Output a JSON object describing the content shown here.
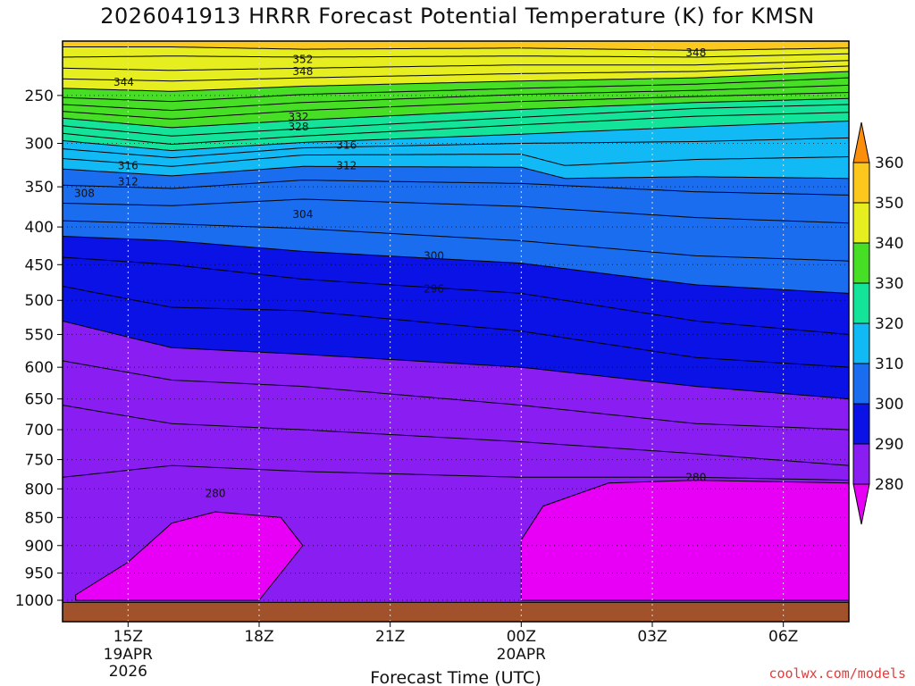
{
  "title": "2026041913 HRRR Forecast Potential Temperature (K) for KMSN",
  "credit": "coolwx.com/models",
  "chart_data": {
    "type": "heatmap",
    "title": "2026041913 HRRR Forecast Potential Temperature (K) for KMSN",
    "xlabel": "Forecast Time (UTC)",
    "ylabel": "",
    "x_range": [
      13.5,
      31.5
    ],
    "y_range": [
      200,
      1040
    ],
    "y_ticks": [
      250,
      300,
      350,
      400,
      450,
      500,
      550,
      600,
      650,
      700,
      750,
      800,
      850,
      900,
      950,
      1000
    ],
    "x_ticks": [
      {
        "x": 15,
        "label": "15Z",
        "sub": [
          "19APR",
          "2026"
        ]
      },
      {
        "x": 18,
        "label": "18Z",
        "sub": []
      },
      {
        "x": 21,
        "label": "21Z",
        "sub": []
      },
      {
        "x": 24,
        "label": "00Z",
        "sub": [
          "20APR"
        ]
      },
      {
        "x": 27,
        "label": "03Z",
        "sub": []
      },
      {
        "x": 30,
        "label": "06Z",
        "sub": []
      }
    ],
    "colorbar": {
      "ticks": [
        280,
        290,
        300,
        310,
        320,
        330,
        340,
        350,
        360
      ],
      "colors": [
        "#e700f5",
        "#8a1ef2",
        "#0a12e6",
        "#1b6df0",
        "#11baf5",
        "#14e39a",
        "#47de26",
        "#e6ee1f",
        "#fcc81e",
        "#fb8f0b"
      ]
    },
    "ground_color": "#a2522a",
    "contour_labels": [
      {
        "value": "348",
        "x": 28.0,
        "p": 210
      },
      {
        "value": "352",
        "x": 19.0,
        "p": 216
      },
      {
        "value": "348",
        "x": 19.0,
        "p": 227
      },
      {
        "value": "344",
        "x": 14.9,
        "p": 237
      },
      {
        "value": "332",
        "x": 18.9,
        "p": 272
      },
      {
        "value": "328",
        "x": 18.9,
        "p": 282
      },
      {
        "value": "316",
        "x": 15.0,
        "p": 325
      },
      {
        "value": "316",
        "x": 20.0,
        "p": 302
      },
      {
        "value": "312",
        "x": 15.0,
        "p": 344
      },
      {
        "value": "312",
        "x": 20.0,
        "p": 325
      },
      {
        "value": "308",
        "x": 14.0,
        "p": 358
      },
      {
        "value": "304",
        "x": 19.0,
        "p": 384
      },
      {
        "value": "300",
        "x": 22.0,
        "p": 438
      },
      {
        "value": "296",
        "x": 22.0,
        "p": 484
      },
      {
        "value": "280",
        "x": 28.0,
        "p": 780
      },
      {
        "value": "280",
        "x": 17.0,
        "p": 808
      }
    ],
    "isentropes": [
      {
        "theta": 349,
        "p": [
          [
            13.5,
            205
          ],
          [
            16,
            205
          ],
          [
            19,
            207
          ],
          [
            24,
            206
          ],
          [
            28,
            208
          ],
          [
            31.5,
            206
          ]
        ]
      },
      {
        "theta": 347,
        "p": [
          [
            13.5,
            214
          ],
          [
            16,
            213
          ],
          [
            19,
            214
          ],
          [
            24,
            213
          ],
          [
            28,
            214
          ],
          [
            31.5,
            211
          ]
        ]
      },
      {
        "theta": 345,
        "p": [
          [
            13.5,
            224
          ],
          [
            16,
            226
          ],
          [
            19,
            224
          ],
          [
            24,
            221
          ],
          [
            28,
            221
          ],
          [
            31.5,
            217
          ]
        ]
      },
      {
        "theta": 343,
        "p": [
          [
            13.5,
            234
          ],
          [
            16,
            236
          ],
          [
            19,
            233
          ],
          [
            24,
            229
          ],
          [
            28,
            227
          ],
          [
            31.5,
            222
          ]
        ]
      },
      {
        "theta": 341,
        "p": [
          [
            13.5,
            243
          ],
          [
            16,
            246
          ],
          [
            19,
            241
          ],
          [
            24,
            236
          ],
          [
            28,
            233
          ],
          [
            31.5,
            227
          ]
        ]
      },
      {
        "theta": 338,
        "p": [
          [
            13.5,
            252
          ],
          [
            16,
            256
          ],
          [
            19,
            249
          ],
          [
            24,
            243
          ],
          [
            28,
            239
          ],
          [
            31.5,
            233
          ]
        ]
      },
      {
        "theta": 335,
        "p": [
          [
            13.5,
            259
          ],
          [
            16,
            265
          ],
          [
            19,
            257
          ],
          [
            24,
            249
          ],
          [
            28,
            245
          ],
          [
            31.5,
            240
          ]
        ]
      },
      {
        "theta": 332,
        "p": [
          [
            13.5,
            266
          ],
          [
            16,
            274
          ],
          [
            19,
            265
          ],
          [
            24,
            256
          ],
          [
            28,
            251
          ],
          [
            31.5,
            247
          ]
        ]
      },
      {
        "theta": 329,
        "p": [
          [
            13.5,
            273
          ],
          [
            16,
            283
          ],
          [
            19,
            275
          ],
          [
            24,
            264
          ],
          [
            28,
            257
          ],
          [
            31.5,
            253
          ]
        ]
      },
      {
        "theta": 326,
        "p": [
          [
            13.5,
            281
          ],
          [
            16,
            292
          ],
          [
            19,
            284
          ],
          [
            24,
            272
          ],
          [
            28,
            263
          ],
          [
            31.5,
            259
          ]
        ]
      },
      {
        "theta": 323,
        "p": [
          [
            13.5,
            289
          ],
          [
            16,
            301
          ],
          [
            19,
            292
          ],
          [
            24,
            280
          ],
          [
            28,
            271
          ],
          [
            31.5,
            267
          ]
        ]
      },
      {
        "theta": 320,
        "p": [
          [
            13.5,
            297
          ],
          [
            16,
            308
          ],
          [
            19,
            299
          ],
          [
            24,
            290
          ],
          [
            28,
            282
          ],
          [
            31.5,
            276
          ]
        ]
      },
      {
        "theta": 317,
        "p": [
          [
            13.5,
            306
          ],
          [
            16,
            316
          ],
          [
            19,
            305
          ],
          [
            24,
            300
          ],
          [
            28,
            298
          ],
          [
            31.5,
            294
          ]
        ]
      },
      {
        "theta": 314,
        "p": [
          [
            13.5,
            317
          ],
          [
            16,
            326
          ],
          [
            19,
            313
          ],
          [
            24,
            312
          ],
          [
            25,
            325
          ],
          [
            28,
            318
          ],
          [
            31.5,
            315
          ]
        ]
      },
      {
        "theta": 311,
        "p": [
          [
            13.5,
            329
          ],
          [
            16,
            337
          ],
          [
            19,
            326
          ],
          [
            24,
            327
          ],
          [
            25,
            340
          ],
          [
            28,
            338
          ],
          [
            31.5,
            340
          ]
        ]
      },
      {
        "theta": 308,
        "p": [
          [
            13.5,
            348
          ],
          [
            16,
            352
          ],
          [
            19,
            342
          ],
          [
            24,
            346
          ],
          [
            28,
            356
          ],
          [
            31.5,
            360
          ]
        ]
      },
      {
        "theta": 305,
        "p": [
          [
            13.5,
            370
          ],
          [
            16,
            373
          ],
          [
            19,
            365
          ],
          [
            24,
            374
          ],
          [
            28,
            388
          ],
          [
            31.5,
            395
          ]
        ]
      },
      {
        "theta": 302,
        "p": [
          [
            13.5,
            392
          ],
          [
            16,
            396
          ],
          [
            19,
            402
          ],
          [
            24,
            418
          ],
          [
            28,
            438
          ],
          [
            31.5,
            445
          ]
        ]
      },
      {
        "theta": 299,
        "p": [
          [
            13.5,
            412
          ],
          [
            16,
            418
          ],
          [
            19,
            432
          ],
          [
            24,
            448
          ],
          [
            28,
            478
          ],
          [
            31.5,
            490
          ]
        ]
      },
      {
        "theta": 296,
        "p": [
          [
            13.5,
            440
          ],
          [
            16,
            450
          ],
          [
            19,
            470
          ],
          [
            24,
            490
          ],
          [
            28,
            530
          ],
          [
            31.5,
            550
          ]
        ]
      },
      {
        "theta": 293,
        "p": [
          [
            13.5,
            480
          ],
          [
            16,
            510
          ],
          [
            19,
            515
          ],
          [
            24,
            545
          ],
          [
            28,
            585
          ],
          [
            31.5,
            600
          ]
        ]
      },
      {
        "theta": 290,
        "p": [
          [
            13.5,
            530
          ],
          [
            16,
            570
          ],
          [
            19,
            580
          ],
          [
            24,
            600
          ],
          [
            28,
            630
          ],
          [
            31.5,
            650
          ]
        ]
      },
      {
        "theta": 287,
        "p": [
          [
            13.5,
            590
          ],
          [
            16,
            620
          ],
          [
            19,
            630
          ],
          [
            24,
            660
          ],
          [
            28,
            690
          ],
          [
            31.5,
            700
          ]
        ]
      },
      {
        "theta": 284,
        "p": [
          [
            13.5,
            660
          ],
          [
            16,
            690
          ],
          [
            19,
            700
          ],
          [
            24,
            720
          ],
          [
            28,
            740
          ],
          [
            31.5,
            760
          ]
        ]
      },
      {
        "theta": 281,
        "p": [
          [
            13.5,
            780
          ],
          [
            16,
            760
          ],
          [
            19,
            770
          ],
          [
            24,
            780
          ],
          [
            28,
            780
          ],
          [
            31.5,
            785
          ]
        ]
      }
    ],
    "shallow_280_regions": [
      [
        [
          13.8,
          990
        ],
        [
          15,
          930
        ],
        [
          16,
          860
        ],
        [
          17,
          840
        ],
        [
          18.5,
          850
        ],
        [
          19,
          900
        ],
        [
          18,
          1000
        ],
        [
          13.8,
          1000
        ]
      ],
      [
        [
          24,
          1000
        ],
        [
          24,
          890
        ],
        [
          24.5,
          830
        ],
        [
          26,
          790
        ],
        [
          28,
          785
        ],
        [
          31.5,
          790
        ],
        [
          31.5,
          1000
        ]
      ]
    ]
  }
}
